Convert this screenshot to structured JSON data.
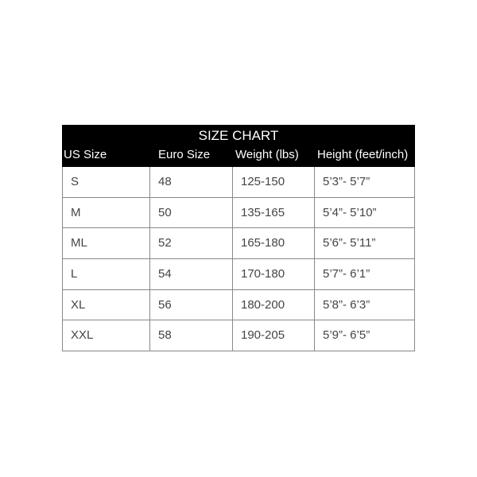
{
  "title": "SIZE CHART",
  "columns": [
    "US Size",
    "Euro Size",
    "Weight (lbs)",
    "Height (feet/inch)"
  ],
  "rows": [
    [
      "S",
      "48",
      "125-150",
      "5’3”- 5’7”"
    ],
    [
      "M",
      "50",
      "135-165",
      "5’4”- 5’10”"
    ],
    [
      "ML",
      "52",
      "165-180",
      "5’6”- 5’11”"
    ],
    [
      "L",
      "54",
      "170-180",
      "5’7”- 6’1”"
    ],
    [
      "XL",
      "56",
      "180-200",
      "5’8”- 6’3”"
    ],
    [
      "XXL",
      "58",
      "190-205",
      "5’9”- 6’5”"
    ]
  ]
}
